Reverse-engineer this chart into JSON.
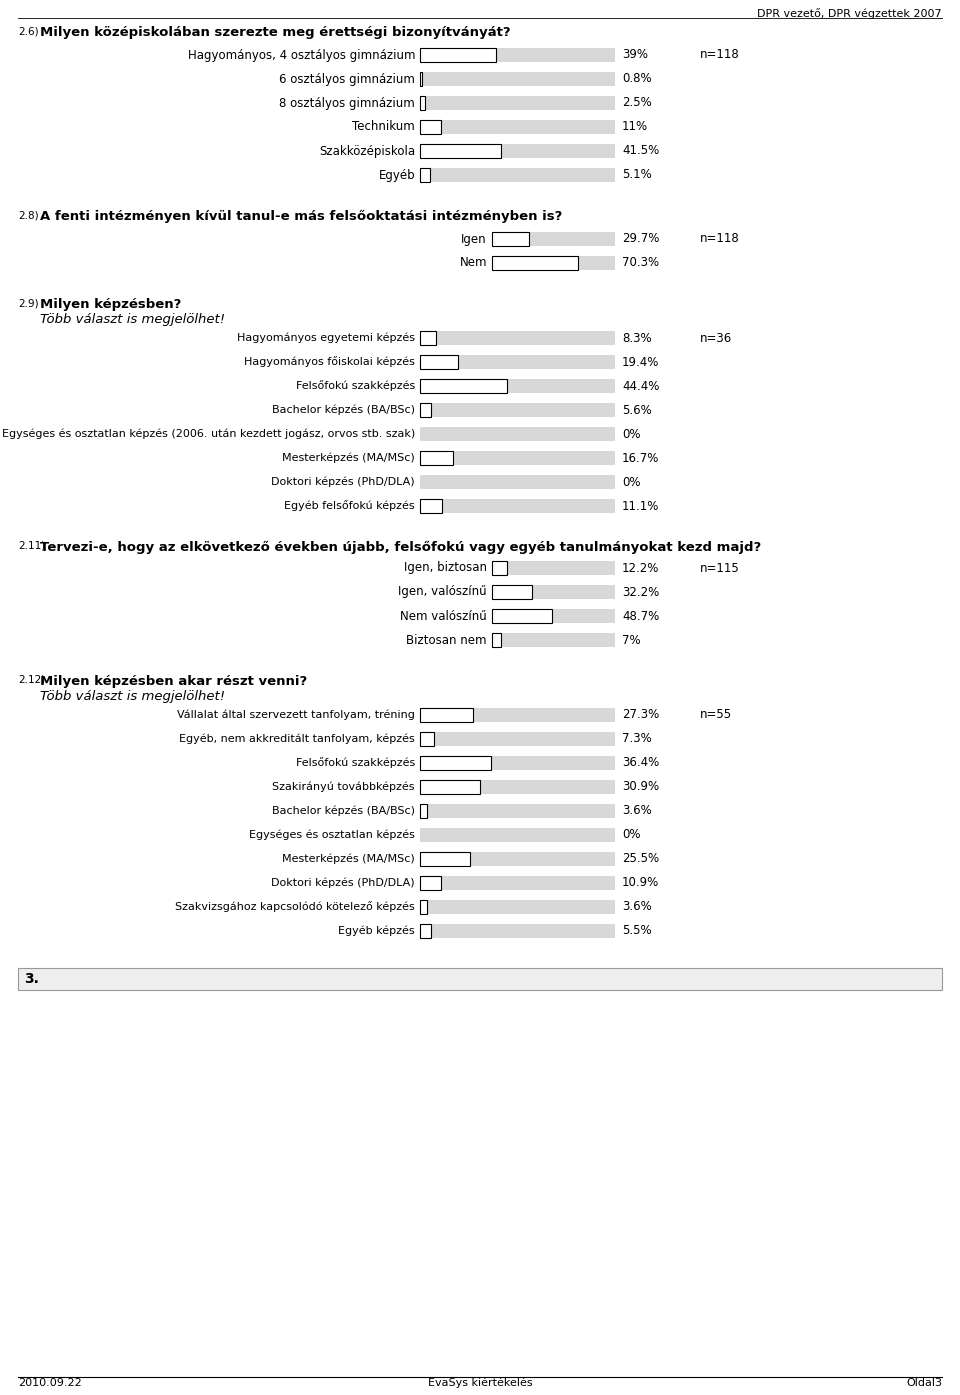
{
  "header_text": "DPR vezető, DPR végzettek 2007",
  "footer_left": "2010.09.22",
  "footer_center": "EvaSys kiértékelés",
  "footer_right": "Oldal3",
  "bg_color": "#ffffff",
  "bar_bg_color": "#d8d8d8",
  "bar_fg_color": "#ffffff",
  "bar_border_color": "#000000",
  "section1": {
    "number": "2.6)",
    "title": "Milyen középiskolában szerezte meg érettségi bizonyítványát?",
    "n_label": "n=118",
    "bars": [
      {
        "label": "Hagyományos, 4 osztályos gimnázium",
        "value": 39.0,
        "text": "39%"
      },
      {
        "label": "6 osztályos gimnázium",
        "value": 0.8,
        "text": "0.8%"
      },
      {
        "label": "8 osztályos gimnázium",
        "value": 2.5,
        "text": "2.5%"
      },
      {
        "label": "Technikum",
        "value": 11.0,
        "text": "11%"
      },
      {
        "label": "Szakközépiskola",
        "value": 41.5,
        "text": "41.5%"
      },
      {
        "label": "Egyéb",
        "value": 5.1,
        "text": "5.1%"
      }
    ],
    "max_val": 100
  },
  "section2": {
    "number": "2.8)",
    "title": "A fenti intézményen kívül tanul-e más felsőoktatási intézményben is?",
    "n_label": "n=118",
    "bars": [
      {
        "label": "Igen",
        "value": 29.7,
        "text": "29.7%"
      },
      {
        "label": "Nem",
        "value": 70.3,
        "text": "70.3%"
      }
    ],
    "max_val": 100
  },
  "section3": {
    "number": "2.9)",
    "title": "Milyen képzésben?",
    "subtitle": "Több választ is megjelölhet!",
    "n_label": "n=36",
    "bars": [
      {
        "label": "Hagyományos egyetemi képzés",
        "value": 8.3,
        "text": "8.3%"
      },
      {
        "label": "Hagyományos főiskolai képzés",
        "value": 19.4,
        "text": "19.4%"
      },
      {
        "label": "Felsőfokú szakképzés",
        "value": 44.4,
        "text": "44.4%"
      },
      {
        "label": "Bachelor képzés (BA/BSc)",
        "value": 5.6,
        "text": "5.6%"
      },
      {
        "label": "Egységes és osztatlan képzés (2006. után kezdett jogász, orvos stb. szak)",
        "value": 0.0,
        "text": "0%"
      },
      {
        "label": "Mesterképzés (MA/MSc)",
        "value": 16.7,
        "text": "16.7%"
      },
      {
        "label": "Doktori képzés (PhD/DLA)",
        "value": 0.0,
        "text": "0%"
      },
      {
        "label": "Egyéb felsőfokú képzés",
        "value": 11.1,
        "text": "11.1%"
      }
    ],
    "max_val": 100
  },
  "section4": {
    "number": "2.11)",
    "title": "Tervezi-e, hogy az elkövetkező években újabb, felsőfokú vagy egyéb tanulmányokat kezd majd?",
    "n_label": "n=115",
    "bars": [
      {
        "label": "Igen, biztosan",
        "value": 12.2,
        "text": "12.2%"
      },
      {
        "label": "Igen, valószínű",
        "value": 32.2,
        "text": "32.2%"
      },
      {
        "label": "Nem valószínű",
        "value": 48.7,
        "text": "48.7%"
      },
      {
        "label": "Biztosan nem",
        "value": 7.0,
        "text": "7%"
      }
    ],
    "max_val": 100
  },
  "section5": {
    "number": "2.12)",
    "title": "Milyen képzésben akar részt venni?",
    "subtitle": "Több választ is megjelölhet!",
    "n_label": "n=55",
    "bars": [
      {
        "label": "Vállalat által szervezett tanfolyam, tréning",
        "value": 27.3,
        "text": "27.3%"
      },
      {
        "label": "Egyéb, nem akkreditált tanfolyam, képzés",
        "value": 7.3,
        "text": "7.3%"
      },
      {
        "label": "Felsőfokú szakképzés",
        "value": 36.4,
        "text": "36.4%"
      },
      {
        "label": "Szakirányú továbbképzés",
        "value": 30.9,
        "text": "30.9%"
      },
      {
        "label": "Bachelor képzés (BA/BSc)",
        "value": 3.6,
        "text": "3.6%"
      },
      {
        "label": "Egységes és osztatlan képzés",
        "value": 0.0,
        "text": "0%"
      },
      {
        "label": "Mesterképzés (MA/MSc)",
        "value": 25.5,
        "text": "25.5%"
      },
      {
        "label": "Doktori képzés (PhD/DLA)",
        "value": 10.9,
        "text": "10.9%"
      },
      {
        "label": "Szakvizsgához kapcsolódó kötelező képzés",
        "value": 3.6,
        "text": "3.6%"
      },
      {
        "label": "Egyéb képzés",
        "value": 5.5,
        "text": "5.5%"
      }
    ],
    "max_val": 100
  },
  "section6": {
    "number": "3.",
    "title": ""
  }
}
